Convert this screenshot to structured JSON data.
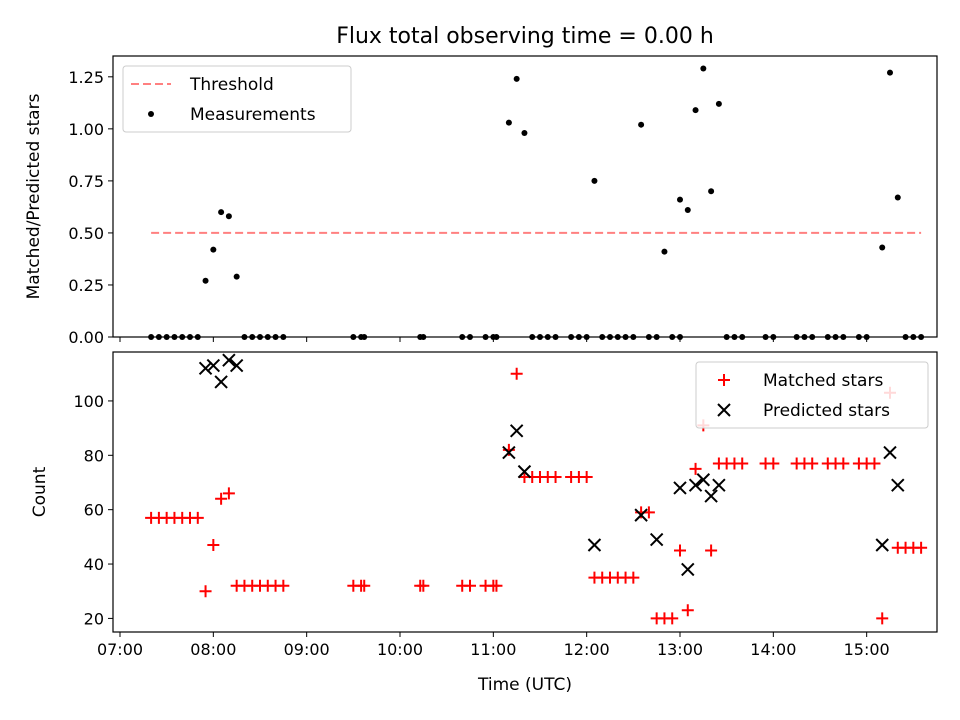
{
  "title": "Flux total observing time = 0.00 h",
  "chart_data": [
    {
      "type": "scatter",
      "title": "Flux total observing time = 0.00 h",
      "xlabel": "",
      "ylabel": "Matched/Predicted stars",
      "xlim": [
        "07:00",
        "16:00"
      ],
      "ylim": [
        0,
        1.35
      ],
      "yticks": [
        0.0,
        0.25,
        0.5,
        0.75,
        1.0,
        1.25
      ],
      "ytick_labels": [
        "0.00",
        "0.25",
        "0.50",
        "0.75",
        "1.00",
        "1.25"
      ],
      "legend": {
        "position": "upper left",
        "entries": [
          "Threshold",
          "Measurements"
        ]
      },
      "threshold": {
        "name": "Threshold",
        "y": 0.5,
        "x_range": [
          "07:20",
          "15:35"
        ],
        "color": "#ff8080",
        "style": "dashed"
      },
      "series": [
        {
          "name": "Measurements",
          "marker": "dot",
          "color": "#000000",
          "points": [
            [
              "07:20",
              0
            ],
            [
              "07:25",
              0
            ],
            [
              "07:30",
              0
            ],
            [
              "07:35",
              0
            ],
            [
              "07:40",
              0
            ],
            [
              "07:45",
              0
            ],
            [
              "07:50",
              0
            ],
            [
              "07:55",
              0.27
            ],
            [
              "08:00",
              0.42
            ],
            [
              "08:05",
              0.6
            ],
            [
              "08:10",
              0.58
            ],
            [
              "08:15",
              0.29
            ],
            [
              "08:20",
              0
            ],
            [
              "08:25",
              0
            ],
            [
              "08:30",
              0
            ],
            [
              "08:35",
              0
            ],
            [
              "08:40",
              0
            ],
            [
              "08:45",
              0
            ],
            [
              "09:30",
              0
            ],
            [
              "09:35",
              0
            ],
            [
              "09:37",
              0
            ],
            [
              "10:13",
              0
            ],
            [
              "10:15",
              0
            ],
            [
              "10:40",
              0
            ],
            [
              "10:45",
              0
            ],
            [
              "10:55",
              0
            ],
            [
              "11:00",
              0
            ],
            [
              "11:02",
              0
            ],
            [
              "11:10",
              1.03
            ],
            [
              "11:15",
              1.24
            ],
            [
              "11:20",
              0.98
            ],
            [
              "11:25",
              0
            ],
            [
              "11:30",
              0
            ],
            [
              "11:35",
              0
            ],
            [
              "11:40",
              0
            ],
            [
              "11:50",
              0
            ],
            [
              "11:55",
              0
            ],
            [
              "12:00",
              0
            ],
            [
              "12:05",
              0.75
            ],
            [
              "12:10",
              0
            ],
            [
              "12:15",
              0
            ],
            [
              "12:20",
              0
            ],
            [
              "12:25",
              0
            ],
            [
              "12:30",
              0
            ],
            [
              "12:35",
              1.02
            ],
            [
              "12:40",
              0
            ],
            [
              "12:45",
              0
            ],
            [
              "12:50",
              0.41
            ],
            [
              "12:55",
              0
            ],
            [
              "13:00",
              0
            ],
            [
              "13:00",
              0.66
            ],
            [
              "13:05",
              0.61
            ],
            [
              "13:10",
              1.09
            ],
            [
              "13:15",
              1.29
            ],
            [
              "13:20",
              0.7
            ],
            [
              "13:25",
              1.12
            ],
            [
              "13:30",
              0
            ],
            [
              "13:35",
              0
            ],
            [
              "13:40",
              0
            ],
            [
              "13:55",
              0
            ],
            [
              "14:00",
              0
            ],
            [
              "14:15",
              0
            ],
            [
              "14:20",
              0
            ],
            [
              "14:25",
              0
            ],
            [
              "14:35",
              0
            ],
            [
              "14:40",
              0
            ],
            [
              "14:45",
              0
            ],
            [
              "14:55",
              0
            ],
            [
              "15:00",
              0
            ],
            [
              "15:10",
              0.43
            ],
            [
              "15:15",
              1.27
            ],
            [
              "15:20",
              0.67
            ],
            [
              "15:25",
              0
            ],
            [
              "15:30",
              0
            ],
            [
              "15:35",
              0
            ]
          ]
        }
      ]
    },
    {
      "type": "scatter",
      "title": "",
      "xlabel": "Time (UTC)",
      "ylabel": "Count",
      "xlim": [
        "07:00",
        "16:00"
      ],
      "ylim": [
        15,
        118
      ],
      "xticks": [
        "07:00",
        "08:00",
        "09:00",
        "10:00",
        "11:00",
        "12:00",
        "13:00",
        "14:00",
        "15:00"
      ],
      "yticks": [
        20,
        40,
        60,
        80,
        100
      ],
      "legend": {
        "position": "upper right",
        "entries": [
          "Matched stars",
          "Predicted stars"
        ]
      },
      "series": [
        {
          "name": "Matched stars",
          "marker": "plus",
          "color": "#ff0000",
          "points": [
            [
              "07:20",
              57
            ],
            [
              "07:25",
              57
            ],
            [
              "07:30",
              57
            ],
            [
              "07:35",
              57
            ],
            [
              "07:40",
              57
            ],
            [
              "07:45",
              57
            ],
            [
              "07:50",
              57
            ],
            [
              "07:55",
              30
            ],
            [
              "08:00",
              47
            ],
            [
              "08:05",
              64
            ],
            [
              "08:10",
              66
            ],
            [
              "08:15",
              32
            ],
            [
              "08:20",
              32
            ],
            [
              "08:25",
              32
            ],
            [
              "08:30",
              32
            ],
            [
              "08:35",
              32
            ],
            [
              "08:40",
              32
            ],
            [
              "08:45",
              32
            ],
            [
              "09:30",
              32
            ],
            [
              "09:35",
              32
            ],
            [
              "09:37",
              32
            ],
            [
              "10:13",
              32
            ],
            [
              "10:15",
              32
            ],
            [
              "10:40",
              32
            ],
            [
              "10:45",
              32
            ],
            [
              "10:55",
              32
            ],
            [
              "11:00",
              32
            ],
            [
              "11:02",
              32
            ],
            [
              "11:10",
              82
            ],
            [
              "11:15",
              110
            ],
            [
              "11:20",
              72
            ],
            [
              "11:25",
              72
            ],
            [
              "11:30",
              72
            ],
            [
              "11:35",
              72
            ],
            [
              "11:40",
              72
            ],
            [
              "11:50",
              72
            ],
            [
              "11:55",
              72
            ],
            [
              "12:00",
              72
            ],
            [
              "12:05",
              35
            ],
            [
              "12:10",
              35
            ],
            [
              "12:15",
              35
            ],
            [
              "12:20",
              35
            ],
            [
              "12:25",
              35
            ],
            [
              "12:30",
              35
            ],
            [
              "12:35",
              59
            ],
            [
              "12:40",
              59
            ],
            [
              "12:45",
              20
            ],
            [
              "12:50",
              20
            ],
            [
              "12:55",
              20
            ],
            [
              "13:00",
              45
            ],
            [
              "13:05",
              23
            ],
            [
              "13:10",
              75
            ],
            [
              "13:15",
              91
            ],
            [
              "13:20",
              45
            ],
            [
              "13:25",
              77
            ],
            [
              "13:30",
              77
            ],
            [
              "13:35",
              77
            ],
            [
              "13:40",
              77
            ],
            [
              "13:55",
              77
            ],
            [
              "14:00",
              77
            ],
            [
              "14:15",
              77
            ],
            [
              "14:20",
              77
            ],
            [
              "14:25",
              77
            ],
            [
              "14:35",
              77
            ],
            [
              "14:40",
              77
            ],
            [
              "14:45",
              77
            ],
            [
              "14:55",
              77
            ],
            [
              "15:00",
              77
            ],
            [
              "15:05",
              77
            ],
            [
              "15:10",
              20
            ],
            [
              "15:15",
              103
            ],
            [
              "15:20",
              46
            ],
            [
              "15:25",
              46
            ],
            [
              "15:30",
              46
            ],
            [
              "15:35",
              46
            ]
          ]
        },
        {
          "name": "Predicted stars",
          "marker": "x",
          "color": "#000000",
          "points": [
            [
              "07:55",
              112
            ],
            [
              "08:00",
              113
            ],
            [
              "08:05",
              107
            ],
            [
              "08:10",
              115
            ],
            [
              "08:15",
              113
            ],
            [
              "11:10",
              81
            ],
            [
              "11:15",
              89
            ],
            [
              "11:20",
              74
            ],
            [
              "12:05",
              47
            ],
            [
              "12:35",
              58
            ],
            [
              "12:45",
              49
            ],
            [
              "13:00",
              68
            ],
            [
              "13:05",
              38
            ],
            [
              "13:10",
              69
            ],
            [
              "13:15",
              71
            ],
            [
              "13:20",
              65
            ],
            [
              "13:25",
              69
            ],
            [
              "15:10",
              47
            ],
            [
              "15:15",
              81
            ],
            [
              "15:20",
              69
            ]
          ]
        }
      ]
    }
  ]
}
